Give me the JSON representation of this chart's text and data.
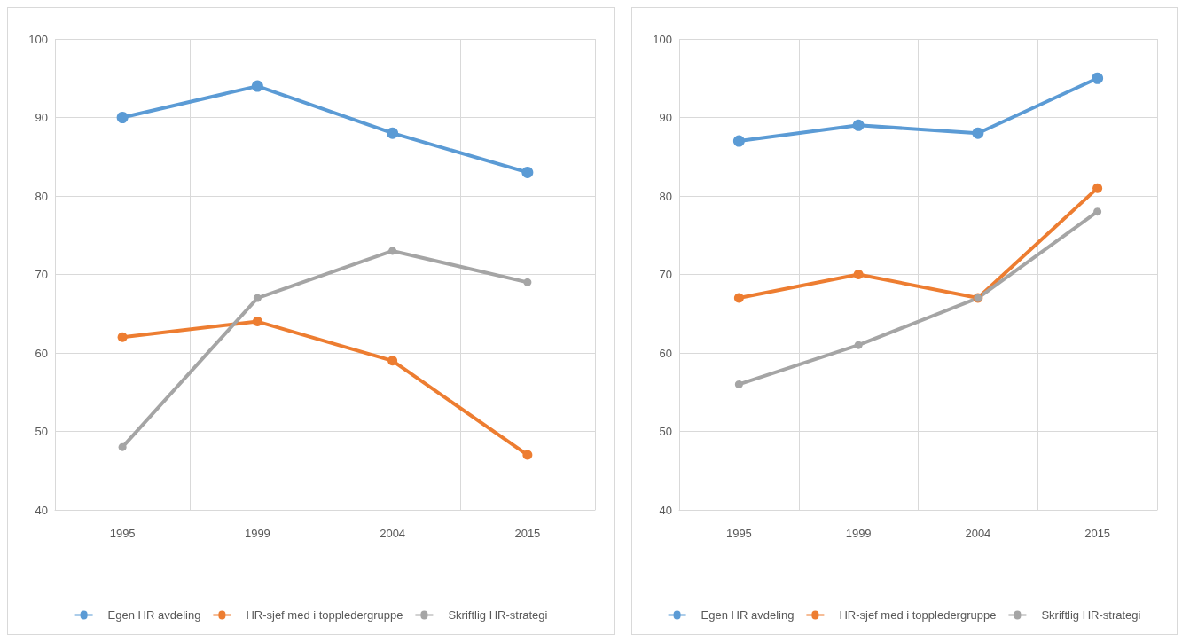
{
  "chart_data": [
    {
      "type": "line",
      "categories": [
        "1995",
        "1999",
        "2004",
        "2015"
      ],
      "ylim": [
        40,
        100
      ],
      "yticks": [
        40,
        50,
        60,
        70,
        80,
        90,
        100
      ],
      "grid": true,
      "legend": "bottom",
      "marker": "circle",
      "line_style": "solid",
      "series": [
        {
          "name": "Egen HR avdeling",
          "color": "#5b9bd5",
          "values": [
            90,
            94,
            88,
            83
          ]
        },
        {
          "name": "HR-sjef med i toppledergruppe",
          "color": "#ed7d31",
          "values": [
            62,
            64,
            59,
            47
          ]
        },
        {
          "name": "Skriftlig HR-strategi",
          "color": "#a5a5a5",
          "values": [
            48,
            67,
            73,
            69
          ]
        }
      ]
    },
    {
      "type": "line",
      "categories": [
        "1995",
        "1999",
        "2004",
        "2015"
      ],
      "ylim": [
        40,
        100
      ],
      "yticks": [
        40,
        50,
        60,
        70,
        80,
        90,
        100
      ],
      "grid": true,
      "legend": "bottom",
      "marker": "circle",
      "line_style": "solid",
      "series": [
        {
          "name": "Egen HR avdeling",
          "color": "#5b9bd5",
          "values": [
            87,
            89,
            88,
            95
          ]
        },
        {
          "name": "HR-sjef med i toppledergruppe",
          "color": "#ed7d31",
          "values": [
            67,
            70,
            67,
            81
          ]
        },
        {
          "name": "Skriftlig HR-strategi",
          "color": "#a5a5a5",
          "values": [
            56,
            61,
            67,
            78
          ]
        }
      ]
    }
  ]
}
